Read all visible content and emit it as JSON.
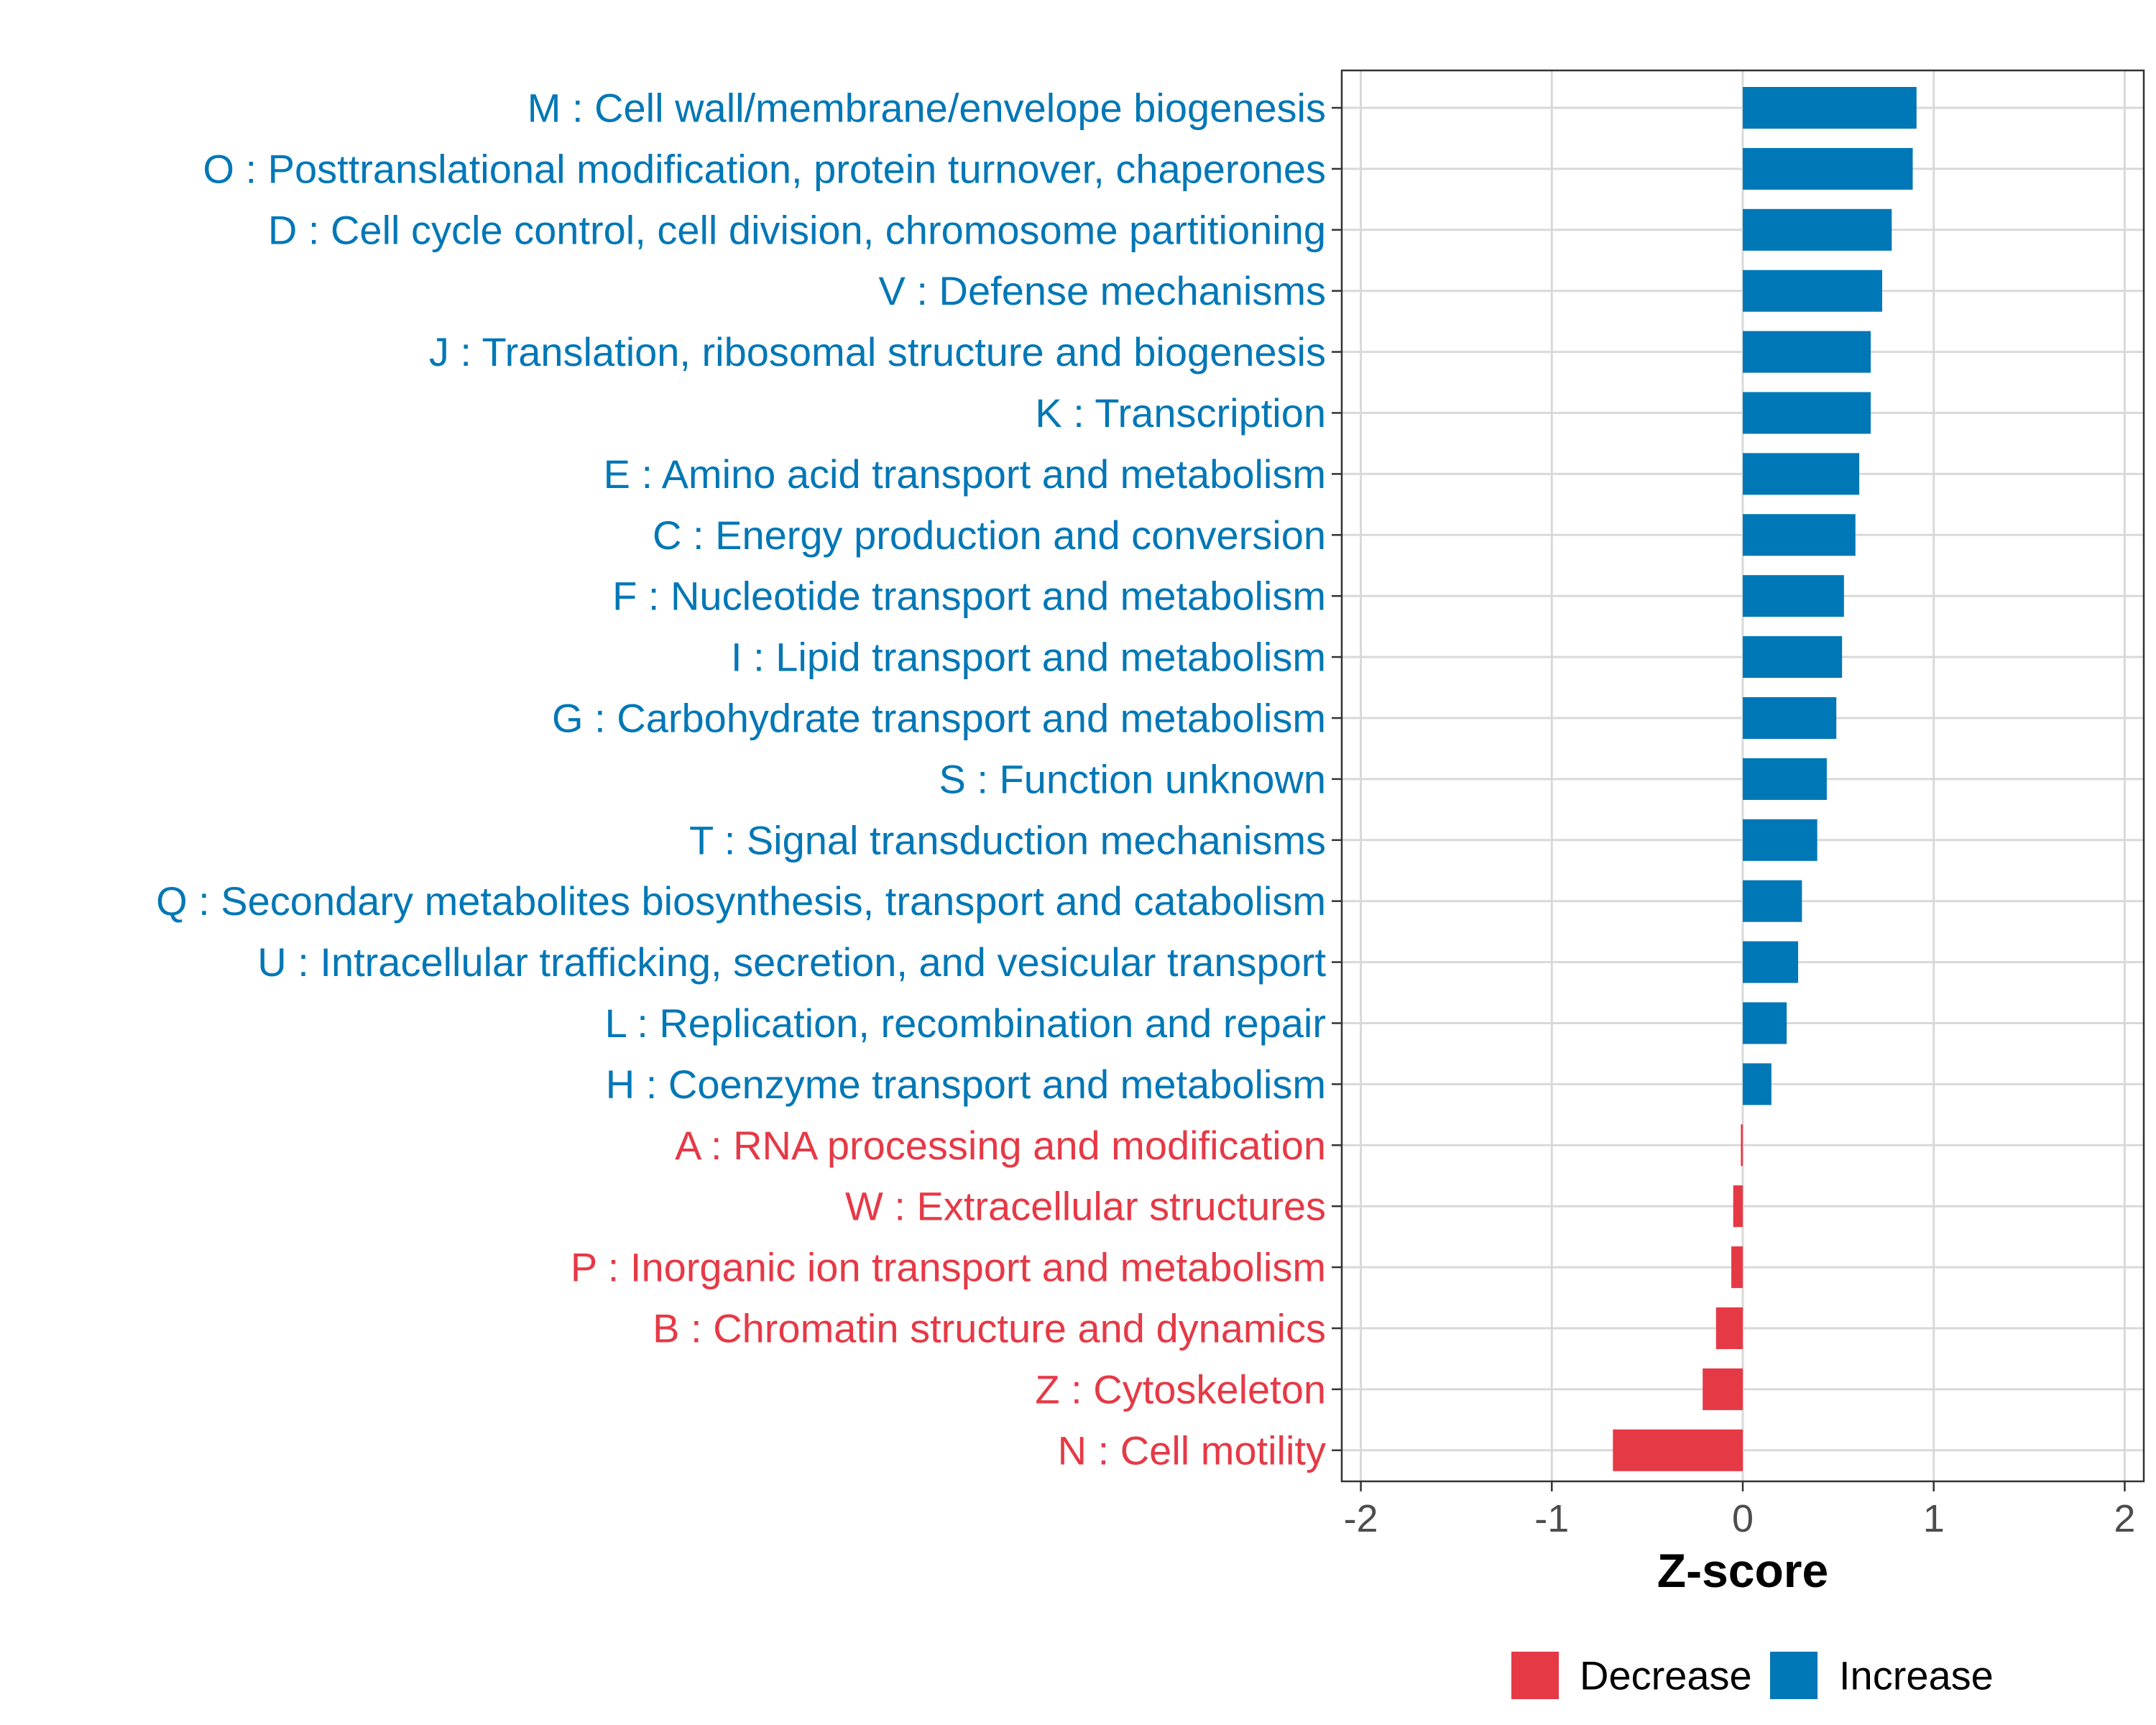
{
  "chart_data": {
    "type": "bar",
    "orientation": "horizontal",
    "xlabel": "Z-score",
    "ylabel": "",
    "xlim": [
      -2.1,
      2.1
    ],
    "xticks": [
      -2,
      -1,
      0,
      1,
      2
    ],
    "xtick_labels": [
      "-2",
      "-1",
      "0",
      "1",
      "2"
    ],
    "grid": true,
    "legend_position": "bottom",
    "colors": {
      "Decrease": "#e63946",
      "Increase": "#0077b6"
    },
    "legend": [
      {
        "label": "Decrease",
        "color": "#e63946"
      },
      {
        "label": "Increase",
        "color": "#0077b6"
      }
    ],
    "categories": [
      "M : Cell wall/membrane/envelope biogenesis",
      "O : Posttranslational modification, protein turnover, chaperones",
      "D : Cell cycle control, cell division, chromosome partitioning",
      "V : Defense mechanisms",
      "J : Translation, ribosomal structure and biogenesis",
      "K : Transcription",
      "E : Amino acid transport and metabolism",
      "C : Energy production and conversion",
      "F : Nucleotide transport and metabolism",
      "I : Lipid transport and metabolism",
      "G : Carbohydrate transport and metabolism",
      "S : Function unknown",
      "T : Signal transduction mechanisms",
      "Q : Secondary metabolites biosynthesis, transport and catabolism",
      "U : Intracellular trafficking, secretion, and vesicular transport",
      "L : Replication, recombination and repair",
      "H : Coenzyme transport and metabolism",
      "A : RNA processing and modification",
      "W : Extracellular structures",
      "P : Inorganic ion transport and metabolism",
      "B : Chromatin structure and dynamics",
      "Z : Cytoskeleton",
      "N : Cell motility"
    ],
    "values": [
      0.91,
      0.89,
      0.78,
      0.73,
      0.67,
      0.67,
      0.61,
      0.59,
      0.53,
      0.52,
      0.49,
      0.44,
      0.39,
      0.31,
      0.29,
      0.23,
      0.15,
      -0.01,
      -0.05,
      -0.06,
      -0.14,
      -0.21,
      -0.68
    ],
    "groups": [
      "Increase",
      "Increase",
      "Increase",
      "Increase",
      "Increase",
      "Increase",
      "Increase",
      "Increase",
      "Increase",
      "Increase",
      "Increase",
      "Increase",
      "Increase",
      "Increase",
      "Increase",
      "Increase",
      "Increase",
      "Decrease",
      "Decrease",
      "Decrease",
      "Decrease",
      "Decrease",
      "Decrease"
    ]
  }
}
